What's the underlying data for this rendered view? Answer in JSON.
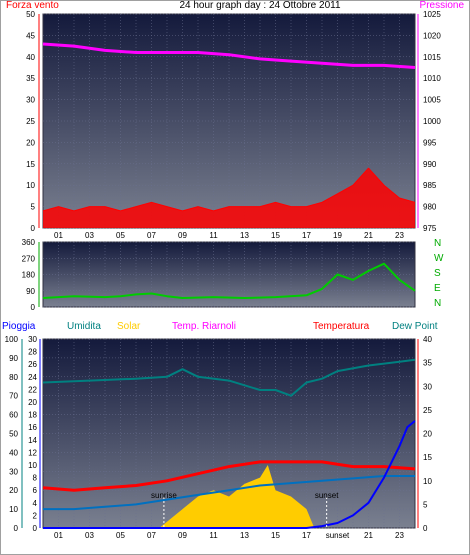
{
  "title": "24 hour graph day : 24 Ottobre 2011",
  "labels": {
    "wind": "Forza vento",
    "pressure": "Pressione",
    "rain": "Pioggia",
    "humidity": "Umidita",
    "solar": "Solar",
    "temp_riarnoli": "Temp. Riarnoli",
    "temperature": "Temperatura",
    "dewpoint": "Dew Point",
    "sunrise": "sunrise",
    "sunset": "sunset",
    "sunset_tick": "sunset"
  },
  "directions": [
    "N",
    "W",
    "S",
    "E",
    "N"
  ],
  "x_hour_ticks": [
    "01",
    "03",
    "05",
    "07",
    "09",
    "11",
    "13",
    "15",
    "17",
    "19",
    "21",
    "23"
  ],
  "colors": {
    "wind": "#ff0000",
    "pressure": "#ff00ff",
    "direction": "#00cc00",
    "humidity": "#008080",
    "solar": "#ffcc00",
    "temperature": "#ff0000",
    "temp_riarnoli": "#ff00ff",
    "dewpoint": "#0070c0",
    "rain": "#0000ff",
    "panel_top": "#141a3c",
    "panel_bottom": "#7a8090"
  },
  "chart_data": [
    {
      "type": "line",
      "name": "wind-pressure",
      "x_range": [
        0,
        24
      ],
      "y_left": {
        "label": "Forza vento",
        "ylim": [
          0,
          50
        ],
        "ticks": [
          0,
          5,
          10,
          15,
          20,
          25,
          30,
          35,
          40,
          45,
          50
        ]
      },
      "y_right": {
        "label": "Pressione",
        "ylim": [
          975,
          1025
        ],
        "ticks": [
          975,
          980,
          985,
          990,
          995,
          1000,
          1005,
          1010,
          1015,
          1020,
          1025
        ]
      },
      "series": [
        {
          "name": "Pressione",
          "axis": "right",
          "x": [
            0,
            2,
            4,
            6,
            8,
            10,
            12,
            14,
            16,
            18,
            20,
            22,
            24
          ],
          "y": [
            1018,
            1017.5,
            1016.5,
            1016,
            1016,
            1016,
            1015.5,
            1014.5,
            1014,
            1013.5,
            1013,
            1013,
            1012.5
          ]
        },
        {
          "name": "Forza vento",
          "axis": "left",
          "x": [
            0,
            1,
            2,
            3,
            4,
            5,
            6,
            7,
            8,
            9,
            10,
            11,
            12,
            13,
            14,
            15,
            16,
            17,
            18,
            19,
            20,
            21,
            22,
            23,
            24
          ],
          "y": [
            4,
            5,
            4,
            5,
            5,
            4,
            5,
            6,
            5,
            4,
            5,
            4,
            5,
            5,
            5,
            6,
            5,
            5,
            6,
            8,
            10,
            14,
            10,
            7,
            6
          ]
        }
      ]
    },
    {
      "type": "line",
      "name": "wind-direction",
      "x_range": [
        0,
        24
      ],
      "y_left": {
        "ylim": [
          0,
          360
        ],
        "ticks": [
          0,
          90,
          180,
          270,
          360
        ]
      },
      "series": [
        {
          "name": "",
          "x": [
            0,
            2,
            4,
            5,
            6,
            7,
            8,
            9,
            11,
            13,
            15,
            17,
            18,
            19,
            20,
            21,
            22,
            23,
            24
          ],
          "y": [
            50,
            60,
            55,
            60,
            70,
            75,
            60,
            50,
            55,
            50,
            55,
            65,
            100,
            180,
            150,
            200,
            240,
            150,
            90
          ]
        }
      ]
    },
    {
      "type": "line",
      "name": "rain-humidity-temperature",
      "x_range": [
        0,
        24
      ],
      "y_left_outer": {
        "label": "Pioggia",
        "ylim": [
          0,
          100
        ],
        "ticks": [
          0,
          10,
          20,
          30,
          40,
          50,
          60,
          70,
          80,
          90,
          100
        ]
      },
      "y_left_inner": {
        "label": "Umidita",
        "ylim": [
          0,
          30
        ],
        "ticks": [
          0,
          2,
          4,
          6,
          8,
          10,
          12,
          14,
          16,
          18,
          20,
          22,
          24,
          26,
          28,
          30
        ]
      },
      "y_right": {
        "label": "Temperatura",
        "ylim": [
          0,
          40
        ],
        "ticks": [
          0,
          5,
          10,
          15,
          20,
          25,
          30,
          35,
          40
        ]
      },
      "series": [
        {
          "name": "Umidita",
          "axis": "outer",
          "x": [
            0,
            3,
            6,
            8,
            9,
            10,
            12,
            14,
            15,
            16,
            17,
            18,
            19,
            21,
            23,
            24
          ],
          "y": [
            77,
            78,
            79,
            80,
            84,
            80,
            78,
            73,
            73,
            70,
            77,
            79,
            83,
            86,
            88,
            89
          ]
        },
        {
          "name": "Temperatura",
          "axis": "right",
          "x": [
            0,
            2,
            4,
            6,
            8,
            10,
            12,
            14,
            16,
            18,
            20,
            22,
            24
          ],
          "y": [
            8.5,
            8,
            8.5,
            9,
            10,
            11.5,
            13,
            14,
            14,
            14,
            13,
            13,
            12.5
          ]
        },
        {
          "name": "Dew Point",
          "axis": "right",
          "x": [
            0,
            2,
            4,
            6,
            8,
            10,
            12,
            14,
            16,
            18,
            20,
            22,
            24
          ],
          "y": [
            4,
            4,
            4.5,
            5,
            6,
            7,
            8,
            9,
            9.5,
            10,
            10.5,
            11,
            11
          ]
        },
        {
          "name": "Pioggia",
          "axis": "inner",
          "x": [
            0,
            17,
            18,
            19,
            20,
            21,
            22,
            23,
            23.5,
            24
          ],
          "y": [
            0,
            0,
            0.3,
            0.8,
            2,
            4,
            8,
            13,
            16,
            17
          ]
        },
        {
          "name": "Solar",
          "axis": "inner",
          "x": [
            7.5,
            8,
            9,
            10,
            11,
            12,
            13,
            14,
            14.5,
            15,
            16,
            17,
            17.5
          ],
          "y": [
            0,
            1,
            3,
            5,
            6,
            5,
            7,
            8,
            10,
            6,
            5,
            3,
            0
          ]
        }
      ],
      "annotations": [
        {
          "text": "sunrise",
          "x": 7.8
        },
        {
          "text": "sunset",
          "x": 18.3
        }
      ]
    }
  ]
}
